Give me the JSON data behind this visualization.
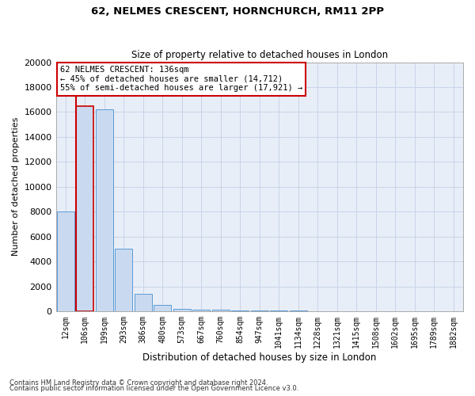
{
  "title1": "62, NELMES CRESCENT, HORNCHURCH, RM11 2PP",
  "title2": "Size of property relative to detached houses in London",
  "xlabel": "Distribution of detached houses by size in London",
  "ylabel": "Number of detached properties",
  "property_label": "62 NELMES CRESCENT: 136sqm",
  "annotation_line1": "← 45% of detached houses are smaller (14,712)",
  "annotation_line2": "55% of semi-detached houses are larger (17,921) →",
  "categories": [
    "12sqm",
    "106sqm",
    "199sqm",
    "293sqm",
    "386sqm",
    "480sqm",
    "573sqm",
    "667sqm",
    "760sqm",
    "854sqm",
    "947sqm",
    "1041sqm",
    "1134sqm",
    "1228sqm",
    "1321sqm",
    "1415sqm",
    "1508sqm",
    "1602sqm",
    "1695sqm",
    "1789sqm",
    "1882sqm"
  ],
  "bar_heights": [
    8000,
    16500,
    16200,
    5000,
    1400,
    500,
    200,
    120,
    100,
    80,
    60,
    40,
    30,
    20,
    15,
    10,
    8,
    5,
    4,
    3,
    2
  ],
  "bar_color": "#c9daf0",
  "bar_edge_color": "#5b9bd5",
  "highlight_bar_index": 1,
  "vline_color": "#cc0000",
  "ylim": [
    0,
    20000
  ],
  "yticks": [
    0,
    2000,
    4000,
    6000,
    8000,
    10000,
    12000,
    14000,
    16000,
    18000,
    20000
  ],
  "grid_color": "#c8d4e8",
  "footnote1": "Contains HM Land Registry data © Crown copyright and database right 2024.",
  "footnote2": "Contains public sector information licensed under the Open Government Licence v3.0.",
  "annotation_box_color": "#cc0000",
  "fig_bg": "#ffffff",
  "axes_bg": "#e8eef8"
}
